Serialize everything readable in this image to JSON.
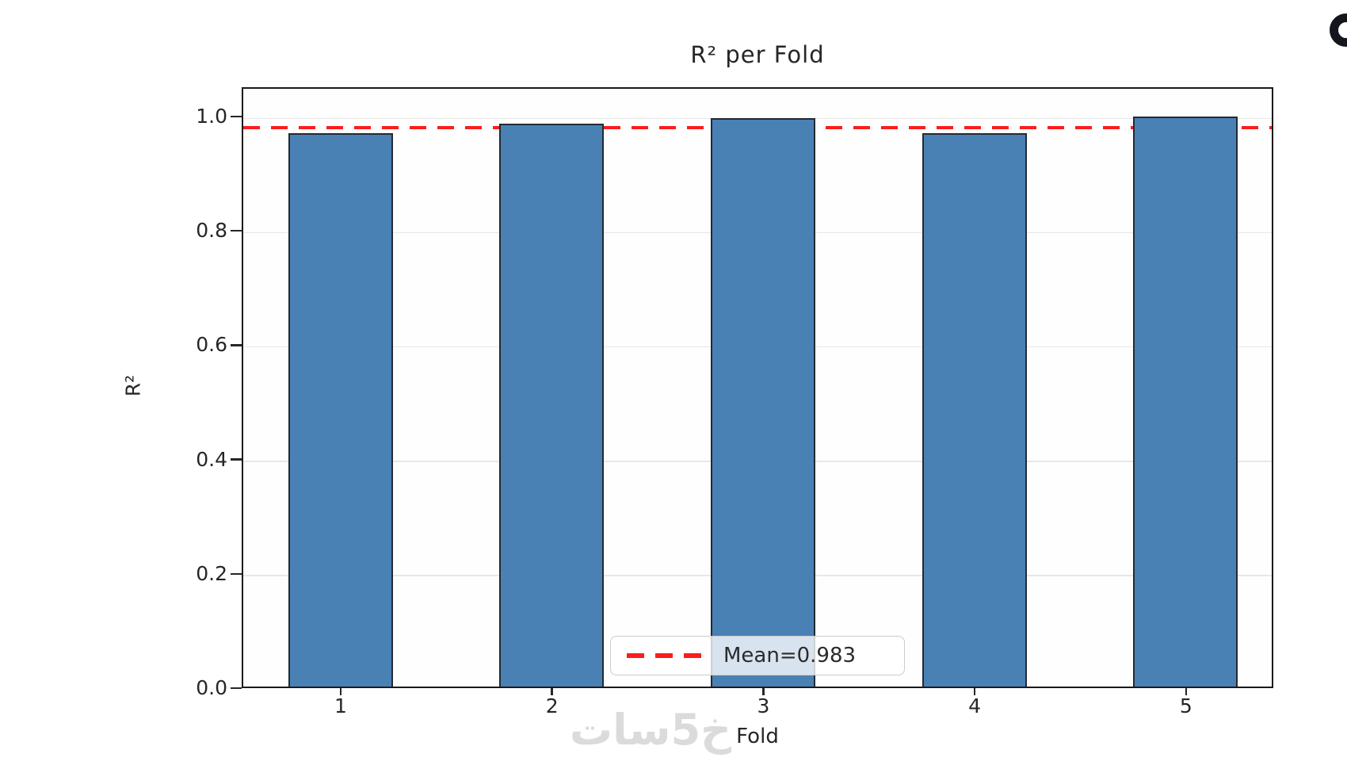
{
  "chart_data": {
    "type": "bar",
    "title": "R² per Fold",
    "xlabel": "Fold",
    "ylabel": "R²",
    "categories": [
      "1",
      "2",
      "3",
      "4",
      "5"
    ],
    "values": [
      0.968,
      0.985,
      0.995,
      0.968,
      0.997
    ],
    "ylim": [
      0,
      1.051
    ],
    "yticks": [
      0.0,
      0.2,
      0.4,
      0.6,
      0.8,
      1.0
    ],
    "grid": true,
    "legend_position": "lower-center",
    "mean_line": {
      "value": 0.983,
      "label": "Mean=0.983",
      "color": "#fb1d1d",
      "style": "dashed"
    },
    "colors": {
      "bar_fill": "#4a81b5",
      "bar_edge": "#222a33",
      "grid": "#e7e7e7",
      "axis": "#1a1a1a",
      "text": "#262626"
    }
  },
  "watermark": {
    "text": "خ5سات",
    "color": "#dbdbdb"
  },
  "decorations": {
    "corner_circle_color": "#14161d"
  }
}
